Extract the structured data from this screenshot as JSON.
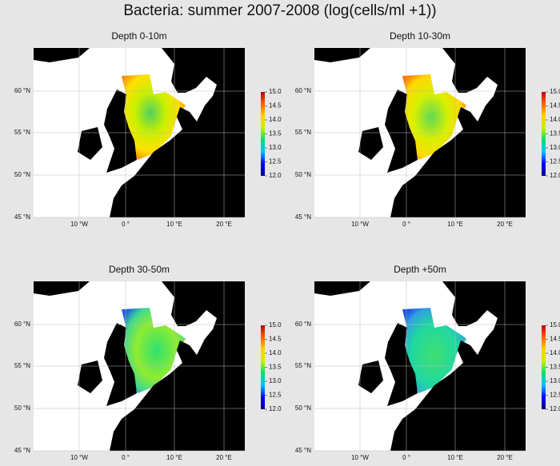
{
  "title": "Bacteria: summer 2007-2008 (log(cells/ml +1))",
  "panels": [
    {
      "title": "Depth 0-10m"
    },
    {
      "title": "Depth 10-30m"
    },
    {
      "title": "Depth 30-50m"
    },
    {
      "title": "Depth +50m"
    }
  ],
  "latitude_ticks": [
    "45 °N",
    "50 °N",
    "55 °N",
    "60 °N"
  ],
  "longitude_ticks": [
    "10 °W",
    "0 °",
    "10 °E",
    "20 °E"
  ],
  "colorbar": {
    "range": [
      12,
      15
    ],
    "ticks": [
      {
        "value": 12,
        "label": "12.0"
      },
      {
        "value": 12.5,
        "label": "12.5"
      },
      {
        "value": 13,
        "label": "13.0"
      },
      {
        "value": 13.5,
        "label": "13.5"
      },
      {
        "value": 14,
        "label": "14.0"
      },
      {
        "value": 14.5,
        "label": "14.5"
      },
      {
        "value": 15,
        "label": "15.0"
      }
    ],
    "colors": [
      "#00007f",
      "#0000ff",
      "#00bfff",
      "#00e070",
      "#c8f000",
      "#ffd000",
      "#ff6000",
      "#c00000"
    ]
  }
}
